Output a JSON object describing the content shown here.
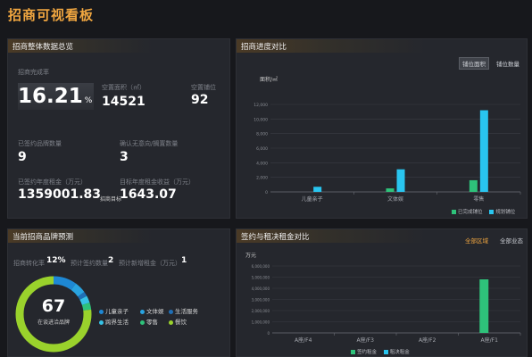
{
  "app": {
    "title": "招商可视看板"
  },
  "overview": {
    "title": "招商整体数据总览",
    "rate_label": "招商完成率",
    "rate_value": "16.21",
    "rate_unit": "%",
    "vacant_area_label": "空置面积（㎡）",
    "vacant_area_value": "14521",
    "vacant_units_label": "空置铺位",
    "vacant_units_value": "92",
    "signed_brands_label": "已签约品牌数量",
    "signed_brands_value": "9",
    "confirmed_label": "确认无意向/搁置数量",
    "confirmed_value": "3",
    "signed_rent_label": "已签约年度租金（万元）",
    "signed_rent_value": "1359001.83",
    "target_rent_label": "目标年度租金收益（万元）",
    "target_rent_value": "1643.07",
    "target_rent_prefix": "招商目标"
  },
  "progress": {
    "title": "招商进度对比",
    "tabs": [
      "铺位面积",
      "铺位数量"
    ],
    "active_tab": 0,
    "unit_label": "面积/㎡",
    "legend": [
      "已完成铺位",
      "规划铺位"
    ]
  },
  "forecast": {
    "title": "当前招商品牌预测",
    "conv_label": "招商转化率",
    "conv_value": "12%",
    "signed_label": "预计签约数量",
    "signed_value": "2",
    "newrent_label": "预计新增租金（万元）",
    "newrent_value": "1",
    "donut_value": "67",
    "donut_label": "在谈进洽品牌",
    "legend": [
      {
        "label": "儿童亲子",
        "color": "#1e88d4"
      },
      {
        "label": "文体娱",
        "color": "#29a3e0"
      },
      {
        "label": "生活服务",
        "color": "#1f6fb6"
      },
      {
        "label": "跨界生活",
        "color": "#36c2e6"
      },
      {
        "label": "零售",
        "color": "#2ec27a"
      },
      {
        "label": "餐饮",
        "color": "#9ad22c"
      }
    ]
  },
  "rent": {
    "title": "签约与租决租金对比",
    "tabs": [
      "全部区域",
      "全部业态"
    ],
    "unit_label": "万元",
    "legend": [
      "签约租金",
      "租决租金"
    ]
  },
  "chart_data": [
    {
      "type": "bar",
      "title": "招商进度对比",
      "ylabel": "面积/㎡",
      "categories": [
        "儿童亲子",
        "文体娱",
        "零售"
      ],
      "series": [
        {
          "name": "已完成铺位",
          "values": [
            0,
            480,
            1600
          ]
        },
        {
          "name": "规划铺位",
          "values": [
            700,
            3100,
            11200
          ]
        }
      ],
      "ylim": [
        0,
        12000
      ],
      "yticks": [
        "0",
        "2,000",
        "4,000",
        "6,000",
        "8,000",
        "10,000",
        "12,000"
      ],
      "colors": [
        "#2ec27a",
        "#29c5ef"
      ],
      "legend": "bottom-right",
      "grid": true
    },
    {
      "type": "bar",
      "title": "签约与租决租金对比",
      "ylabel": "万元",
      "categories": [
        "A座/F4",
        "A座/F3",
        "A座/F2",
        "A座/F1"
      ],
      "series": [
        {
          "name": "签约租金",
          "values": [
            0,
            0,
            0,
            4800000
          ]
        },
        {
          "name": "租决租金",
          "values": [
            0,
            0,
            0,
            0
          ]
        }
      ],
      "ylim": [
        0,
        6000000
      ],
      "yticks": [
        "0",
        "1,000,000",
        "2,000,000",
        "3,000,000",
        "4,000,000",
        "5,000,000",
        "6,000,000"
      ],
      "colors": [
        "#2ec27a",
        "#29c5ef"
      ],
      "legend": "bottom-center",
      "grid": true
    }
  ]
}
